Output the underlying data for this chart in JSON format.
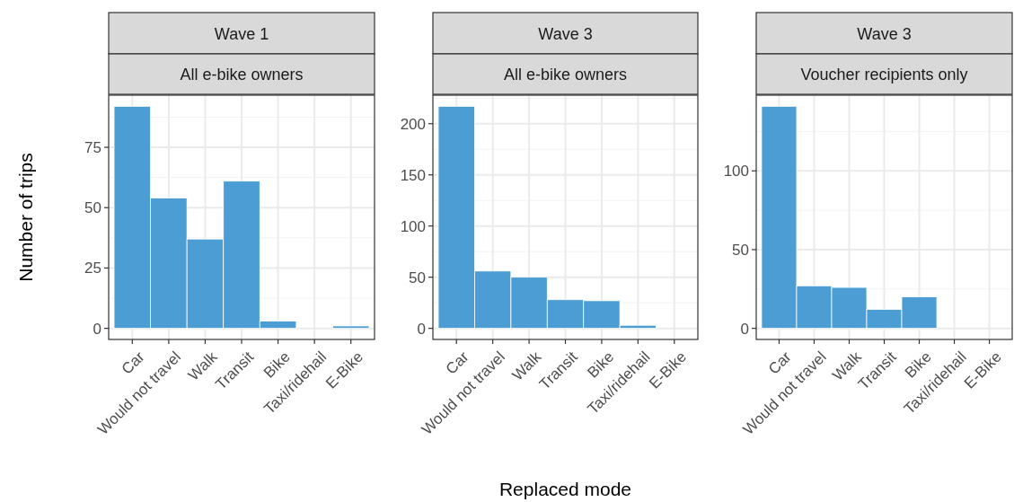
{
  "chart_data": [
    {
      "type": "bar",
      "title": "Wave 1",
      "subtitle": "All e-bike owners",
      "ylabel": "Number of trips",
      "categories": [
        "Car",
        "Would not travel",
        "Walk",
        "Transit",
        "Bike",
        "Taxi/ridehail",
        "E-Bike"
      ],
      "values": [
        92,
        54,
        37,
        61,
        3,
        0,
        1
      ],
      "color": "#4b9dd4",
      "ylim": [
        -4.6,
        96.6
      ],
      "yticks": [
        0,
        25,
        50,
        75
      ],
      "grid": true
    },
    {
      "type": "bar",
      "title": "Wave 3",
      "subtitle": "All e-bike owners",
      "xlabel": "Replaced mode",
      "categories": [
        "Car",
        "Would not travel",
        "Walk",
        "Transit",
        "Bike",
        "Taxi/ridehail",
        "E-Bike"
      ],
      "values": [
        217,
        56,
        50,
        28,
        27,
        3,
        0
      ],
      "color": "#4b9dd4",
      "ylim": [
        -10.85,
        227.85
      ],
      "yticks": [
        0,
        50,
        100,
        150,
        200
      ],
      "grid": true
    },
    {
      "type": "bar",
      "title": "Wave 3",
      "subtitle": "Voucher recipients only",
      "categories": [
        "Car",
        "Would not travel",
        "Walk",
        "Transit",
        "Bike",
        "Taxi/ridehail",
        "E-Bike"
      ],
      "values": [
        141,
        27,
        26,
        12,
        20,
        0,
        0
      ],
      "color": "#4b9dd4",
      "ylim": [
        -7.05,
        148.05
      ],
      "yticks": [
        0,
        50,
        100
      ],
      "grid": true
    }
  ]
}
